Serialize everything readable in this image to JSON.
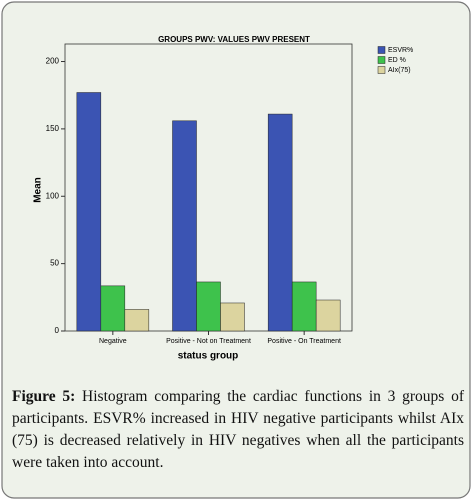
{
  "chart_data": {
    "type": "bar",
    "title": "GROUPS PWV: VALUES PWV PRESENT",
    "x_label": "status group",
    "y_label": "Mean",
    "categories": [
      "Negative",
      "Positive - Not on Treatment",
      "Positive - On Treatment"
    ],
    "series": [
      {
        "name": "ESVR%",
        "color": "#3b54b3",
        "values": [
          177,
          156,
          161
        ]
      },
      {
        "name": "ED %",
        "color": "#3ec24c",
        "values": [
          33.5,
          36.4,
          36.4
        ]
      },
      {
        "name": "AIx(75)",
        "color": "#dcd49f",
        "values": [
          16,
          20.8,
          23
        ]
      }
    ],
    "ylim": [
      0,
      213
    ],
    "yticks": [
      0,
      50,
      100,
      150,
      200
    ],
    "grid": false,
    "legend": "right",
    "figure_label": "Figure 5:",
    "caption": "Histogram comparing the cardiac functions in 3 groups of participants. ESVR% increased in HIV negative participants whilst AIx (75) is decreased relatively in HIV negatives when all the participants were taken into account."
  }
}
